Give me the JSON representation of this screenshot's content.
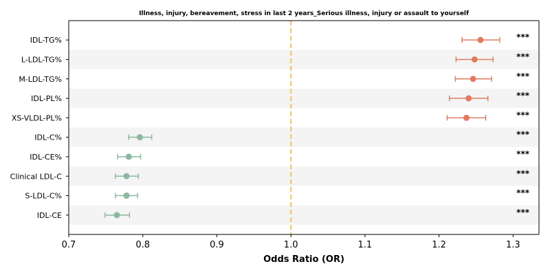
{
  "chart_data": {
    "type": "scatter",
    "subtype": "forest-plot",
    "title": "Illness, injury, bereavement, stress in last 2 years_Serious illness, injury or assault to yourself",
    "xlabel": "Odds Ratio (OR)",
    "ylabel": "",
    "xlim": [
      0.7,
      1.335
    ],
    "x_ticks": [
      0.7,
      0.8,
      0.9,
      1.0,
      1.1,
      1.2,
      1.3
    ],
    "x_tick_labels": [
      "0.7",
      "0.8",
      "0.9",
      "1.0",
      "1.1",
      "1.2",
      "1.3"
    ],
    "reference_line": 1.0,
    "grid": false,
    "colors": {
      "positive": "#e07b5f",
      "negative": "#8ab89e",
      "reference": "#f0c987",
      "band": "#f4f4f4"
    },
    "points": [
      {
        "label": "IDL-TG%",
        "or": 1.256,
        "ci_low": 1.231,
        "ci_high": 1.282,
        "sig": "***"
      },
      {
        "label": "L-LDL-TG%",
        "or": 1.248,
        "ci_low": 1.223,
        "ci_high": 1.273,
        "sig": "***"
      },
      {
        "label": "M-LDL-TG%",
        "or": 1.246,
        "ci_low": 1.222,
        "ci_high": 1.271,
        "sig": "***"
      },
      {
        "label": "IDL-PL%",
        "or": 1.24,
        "ci_low": 1.214,
        "ci_high": 1.266,
        "sig": "***"
      },
      {
        "label": "XS-VLDL-PL%",
        "or": 1.237,
        "ci_low": 1.211,
        "ci_high": 1.263,
        "sig": "***"
      },
      {
        "label": "IDL-C%",
        "or": 0.796,
        "ci_low": 0.781,
        "ci_high": 0.812,
        "sig": "***"
      },
      {
        "label": "IDL-CE%",
        "or": 0.781,
        "ci_low": 0.766,
        "ci_high": 0.797,
        "sig": "***"
      },
      {
        "label": "Clinical LDL-C",
        "or": 0.778,
        "ci_low": 0.763,
        "ci_high": 0.794,
        "sig": "***"
      },
      {
        "label": "S-LDL-C%",
        "or": 0.778,
        "ci_low": 0.763,
        "ci_high": 0.793,
        "sig": "***"
      },
      {
        "label": "IDL-CE",
        "or": 0.765,
        "ci_low": 0.749,
        "ci_high": 0.782,
        "sig": "***"
      }
    ]
  }
}
